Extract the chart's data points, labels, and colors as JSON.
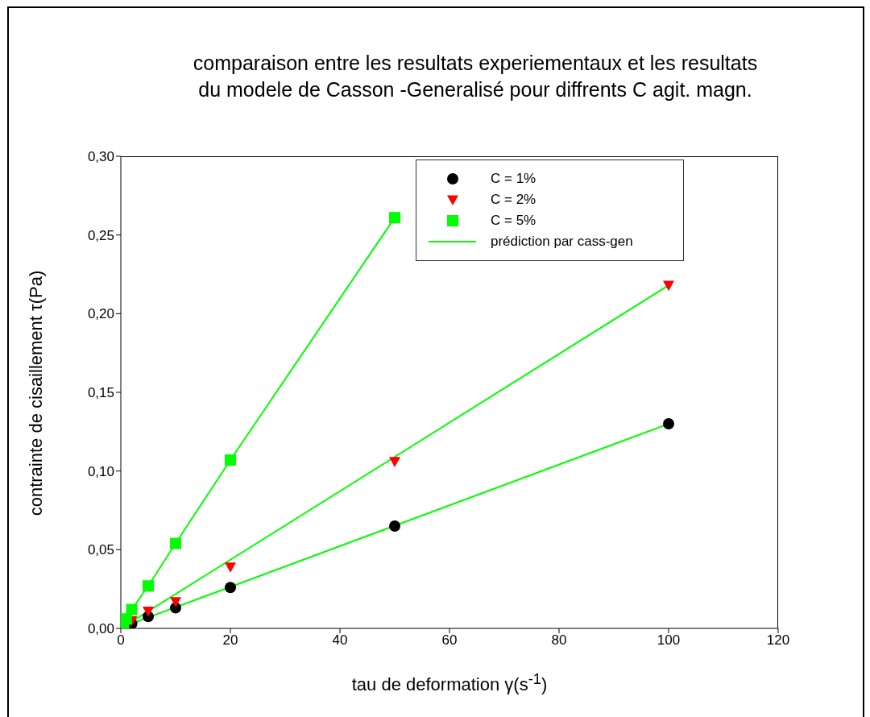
{
  "chart_data": {
    "type": "scatter",
    "title": "comparaison entre les resultats experiementaux et les resultats\ndu modele de Casson -Generalisé pour diffrents C agit. magn.",
    "xlabel": "tau de deformation γ(s$^{-1}$)",
    "ylabel": "contrainte de cisaillement τ(Pa)",
    "x": [
      0.5,
      1,
      2,
      5,
      10,
      20,
      50,
      100
    ],
    "series": [
      {
        "name": "C = 1%",
        "color": "#000000",
        "marker": "circle",
        "values": [
          null,
          null,
          0.003,
          0.0075,
          0.013,
          0.026,
          0.065,
          0.13
        ]
      },
      {
        "name": "C = 2%",
        "color": "#ff0000",
        "marker": "triangle",
        "values": [
          null,
          null,
          0.005,
          0.011,
          0.017,
          0.039,
          0.106,
          0.218
        ]
      },
      {
        "name": "C = 5%",
        "color": "#00ff00",
        "marker": "square",
        "values": [
          0.003,
          0.006,
          0.012,
          0.027,
          0.054,
          0.107,
          0.261,
          null
        ]
      },
      {
        "name": "prédiction par cass-gen",
        "type": "line",
        "color": "#00ff00",
        "marker": "none",
        "x": [
          0,
          100
        ],
        "values": [
          0.0005,
          0.13
        ]
      },
      {
        "type": "line",
        "color": "#00ff00",
        "marker": "none",
        "x": [
          0,
          100
        ],
        "values": [
          0,
          0.218
        ]
      },
      {
        "type": "line",
        "color": "#00ff00",
        "marker": "none",
        "x": [
          0,
          1,
          2,
          5,
          10,
          20,
          50
        ],
        "values": [
          0.0005,
          0.006,
          0.012,
          0.027,
          0.054,
          0.107,
          0.261
        ]
      }
    ],
    "xlim": [
      0,
      120
    ],
    "xticks": [
      0,
      20,
      40,
      60,
      80,
      100,
      120
    ],
    "ylim": [
      0,
      0.3
    ],
    "yticks": [
      {
        "value": 0,
        "label": "0,00"
      },
      {
        "value": 0.05,
        "label": "0,05"
      },
      {
        "value": 0.1,
        "label": "0,10"
      },
      {
        "value": 0.15,
        "label": "0,15"
      },
      {
        "value": 0.2,
        "label": "0,20"
      },
      {
        "value": 0.25,
        "label": "0,25"
      },
      {
        "value": 0.3,
        "label": "0,30"
      }
    ],
    "legend": "top right",
    "grid": false
  }
}
